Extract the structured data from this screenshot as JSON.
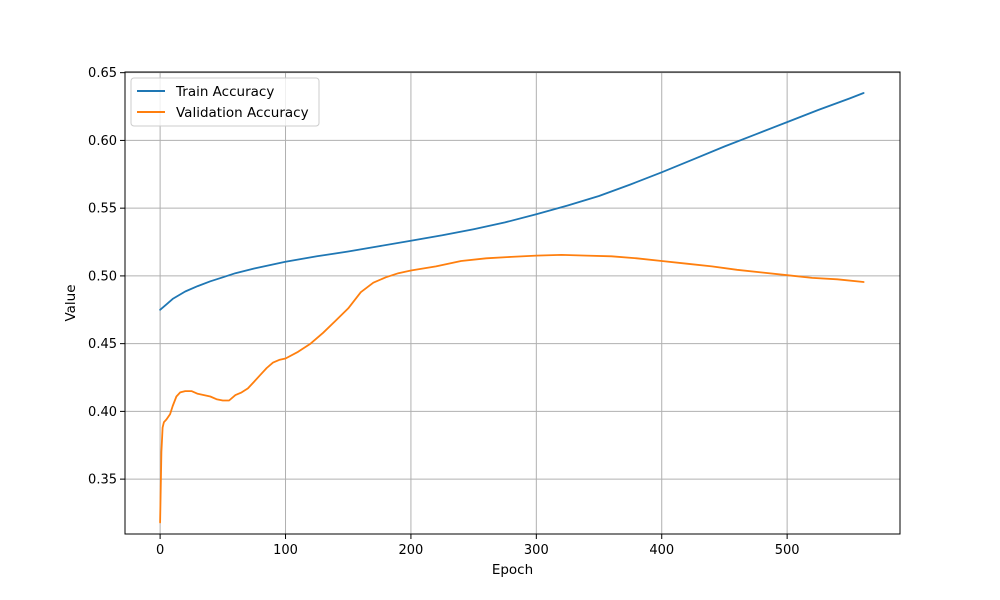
{
  "chart_data": {
    "type": "line",
    "title": "",
    "xlabel": "Epoch",
    "ylabel": "Value",
    "xlim": [
      -28,
      590
    ],
    "ylim": [
      0.3095,
      0.6505
    ],
    "xticks": [
      0,
      100,
      200,
      300,
      400,
      500
    ],
    "yticks": [
      0.35,
      0.4,
      0.45,
      0.5,
      0.55,
      0.6,
      0.65
    ],
    "ytick_labels": [
      "0.35",
      "0.40",
      "0.45",
      "0.50",
      "0.55",
      "0.60",
      "0.65"
    ],
    "grid": true,
    "legend_position": "upper-left",
    "series": [
      {
        "name": "Train Accuracy",
        "color": "#1f77b4",
        "x": [
          0,
          5,
          10,
          20,
          30,
          40,
          50,
          60,
          75,
          100,
          125,
          150,
          175,
          200,
          225,
          250,
          275,
          300,
          325,
          350,
          375,
          400,
          425,
          450,
          475,
          500,
          525,
          550,
          561
        ],
        "y": [
          0.475,
          0.479,
          0.483,
          0.4885,
          0.4925,
          0.496,
          0.499,
          0.502,
          0.5055,
          0.5105,
          0.5145,
          0.518,
          0.522,
          0.526,
          0.53,
          0.5345,
          0.5395,
          0.5455,
          0.552,
          0.559,
          0.5675,
          0.5765,
          0.586,
          0.5955,
          0.6045,
          0.6135,
          0.6225,
          0.631,
          0.635
        ]
      },
      {
        "name": "Validation Accuracy",
        "color": "#ff7f0e",
        "x": [
          0,
          1,
          2,
          3,
          5,
          8,
          10,
          13,
          16,
          20,
          25,
          30,
          35,
          40,
          45,
          50,
          55,
          60,
          65,
          70,
          75,
          80,
          85,
          90,
          95,
          100,
          110,
          120,
          130,
          140,
          150,
          160,
          170,
          180,
          190,
          200,
          220,
          240,
          260,
          280,
          300,
          320,
          340,
          360,
          380,
          400,
          420,
          440,
          460,
          480,
          500,
          520,
          540,
          561
        ],
        "y": [
          0.318,
          0.37,
          0.388,
          0.392,
          0.394,
          0.398,
          0.404,
          0.411,
          0.414,
          0.415,
          0.415,
          0.413,
          0.412,
          0.411,
          0.409,
          0.408,
          0.408,
          0.412,
          0.414,
          0.417,
          0.422,
          0.427,
          0.432,
          0.436,
          0.438,
          0.439,
          0.444,
          0.45,
          0.458,
          0.467,
          0.476,
          0.488,
          0.495,
          0.499,
          0.502,
          0.504,
          0.507,
          0.511,
          0.513,
          0.514,
          0.515,
          0.5155,
          0.515,
          0.5145,
          0.513,
          0.511,
          0.509,
          0.507,
          0.5045,
          0.5025,
          0.5005,
          0.4985,
          0.4975,
          0.4955
        ]
      }
    ]
  }
}
